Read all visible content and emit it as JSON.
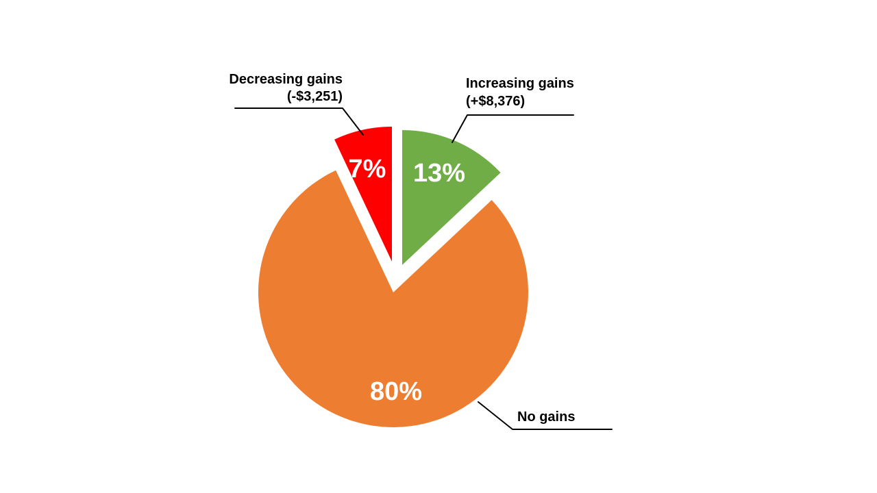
{
  "chart_data": {
    "type": "pie",
    "title": "",
    "background": "#FFFFFF",
    "start_angle_deg": 0,
    "direction": "clockwise",
    "legend": "none",
    "pct_label_color": "#FFFFFF",
    "callout_text_color": "#000000",
    "slices": [
      {
        "id": "increasing-gains",
        "label": "Increasing gains",
        "sublabel": "(+$8,376)",
        "amount": 8376,
        "percent": 13,
        "pct_label": "13%",
        "color": "#70AD47",
        "explode": [
          13,
          -40
        ]
      },
      {
        "id": "no-gains",
        "label": "No gains",
        "sublabel": "",
        "percent": 80,
        "pct_label": "80%",
        "color": "#ED7D31",
        "explode": [
          0,
          0
        ]
      },
      {
        "id": "decreasing-gains",
        "label": "Decreasing gains",
        "sublabel": "(-$3,251)",
        "amount": -3251,
        "percent": 7,
        "pct_label": "7%",
        "color": "#FF0000",
        "explode": [
          -2,
          -45
        ]
      }
    ]
  }
}
